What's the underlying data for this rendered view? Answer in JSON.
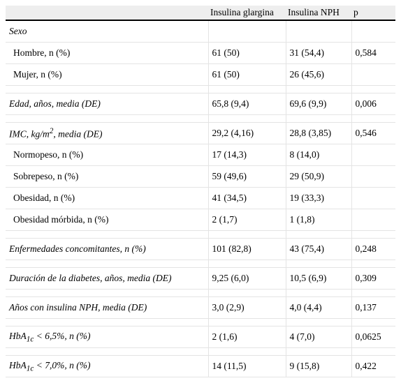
{
  "table": {
    "columns": [
      "Insulina glargina",
      "Insulina NPH",
      "p"
    ],
    "rows": [
      {
        "label": "Sexo"
      },
      {
        "label": "Hombre, n (%)",
        "cells": [
          "61 (50)",
          "31 (54,4)",
          "0,584"
        ]
      },
      {
        "label": "Mujer, n (%)",
        "cells": [
          "61 (50)",
          "26 (45,6)"
        ]
      },
      {
        "label": "Edad, años, media (DE)",
        "cells": [
          "65,8 (9,4)",
          "69,6 (9,9)",
          "0,006"
        ]
      },
      {
        "label": [
          "IMC, kg/m",
          "2",
          ", media (DE)"
        ],
        "cells": [
          "29,2 (4,16)",
          "28,8 (3,85)",
          "0,546"
        ]
      },
      {
        "label": "Normopeso, n (%)",
        "cells": [
          "17 (14,3)",
          "8 (14,0)"
        ]
      },
      {
        "label": "Sobrepeso, n (%)",
        "cells": [
          "59 (49,6)",
          "29 (50,9)"
        ]
      },
      {
        "label": "Obesidad, n (%)",
        "cells": [
          "41 (34,5)",
          "19 (33,3)"
        ]
      },
      {
        "label": "Obesidad mórbida, n (%)",
        "cells": [
          "2 (1,7)",
          "1 (1,8)"
        ]
      },
      {
        "label": "Enfermedades concomitantes, n (%)",
        "cells": [
          "101 (82,8)",
          "43 (75,4)",
          "0,248"
        ]
      },
      {
        "label": "Duración de la diabetes, años, media (DE)",
        "cells": [
          "9,25 (6,0)",
          "10,5 (6,9)",
          "0,309"
        ]
      },
      {
        "label": "Años con insulina NPH, media (DE)",
        "cells": [
          "3,0 (2,9)",
          "4,0 (4,4)",
          "0,137"
        ]
      },
      {
        "label": [
          "HbA",
          "1c",
          " < 6,5%, n (%)"
        ],
        "cells": [
          "2 (1,6)",
          "4 (7,0)",
          "0,0625"
        ]
      },
      {
        "label": [
          "HbA",
          "1c",
          " < 7,0%, n (%)"
        ],
        "cells": [
          "14 (11,5)",
          "9 (15,8)",
          "0,422"
        ]
      }
    ]
  }
}
